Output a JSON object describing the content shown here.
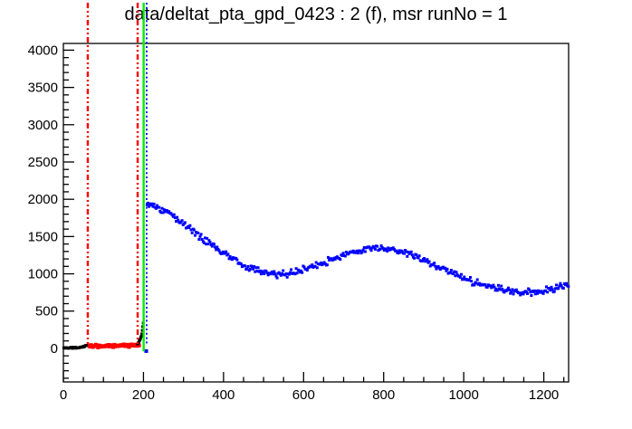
{
  "window": {
    "background": "#ffffff"
  },
  "chart_data": {
    "type": "scatter",
    "title": "data/deltat_pta_gpd_0423 : 2 (f), msr runNo = 1",
    "xlabel": "",
    "ylabel": "",
    "xlim": [
      0,
      1262
    ],
    "ylim": [
      -450,
      4090
    ],
    "grid": false,
    "legend": false,
    "axis_color": "#000000",
    "x_axis": {
      "major_step": 200,
      "minor_step": 50,
      "tick_labels": [
        "0",
        "200",
        "400",
        "600",
        "800",
        "1000",
        "1200"
      ]
    },
    "y_axis": {
      "major_step": 500,
      "minor_step": 100,
      "tick_labels": [
        "0",
        "500",
        "1000",
        "1500",
        "2000",
        "2500",
        "3000",
        "3500",
        "4000"
      ]
    },
    "marker_lines": [
      {
        "name": "background-range-start-line",
        "x": 61,
        "color": "#ff0000",
        "style": "dashdot",
        "width": 2.4,
        "end_value": 30
      },
      {
        "name": "background-range-end-line",
        "x": 185.5,
        "color": "#ff0000",
        "style": "dashdot",
        "width": 2.4,
        "end_value": 30
      },
      {
        "name": "t0-line",
        "x": 200.5,
        "color": "#00ee00",
        "style": "solid",
        "width": 2.4,
        "end_value": -40
      },
      {
        "name": "first-good-bin-line",
        "x": 208,
        "color": "#0000ff",
        "style": "dotted",
        "width": 1.8,
        "end_value": 55
      }
    ],
    "series": [
      {
        "name": "pre-background-data",
        "color": "#000000",
        "marker": 3,
        "step": 1.4,
        "noise": 12,
        "seed": 11,
        "range": [
          1,
          63
        ],
        "anchors": [
          [
            1,
            6
          ],
          [
            40,
            10
          ],
          [
            50,
            25
          ],
          [
            63,
            45
          ]
        ]
      },
      {
        "name": "background-window-data",
        "color": "#ff0000",
        "marker": 4,
        "step": 1.8,
        "noise": 27,
        "seed": 22,
        "range": [
          65,
          191
        ],
        "anchors": [
          [
            65,
            38
          ],
          [
            191,
            40
          ]
        ]
      },
      {
        "name": "prompt-peak-rise-data",
        "color": "#000000",
        "marker": 3,
        "step": 1.2,
        "noise": 14,
        "seed": 33,
        "range": [
          185,
          200
        ],
        "anchors": [
          [
            185,
            55
          ],
          [
            190,
            95
          ],
          [
            194,
            150
          ],
          [
            197,
            240
          ],
          [
            200,
            360
          ]
        ]
      },
      {
        "name": "t0-undershoot-point",
        "color": "#0000ff",
        "marker": 4,
        "step": 2,
        "noise": 0,
        "seed": 44,
        "range": [
          207,
          208
        ],
        "anchors": [
          [
            207,
            -36
          ]
        ]
      },
      {
        "name": "muon-decay-histogram-data",
        "color": "#0000ff",
        "marker": 3,
        "step": 2.5,
        "noise": 55,
        "seed": 55,
        "range": [
          209,
          1262
        ],
        "anchors": [
          [
            209,
            1905
          ],
          [
            215,
            1950
          ],
          [
            228,
            1930
          ],
          [
            245,
            1862
          ],
          [
            270,
            1800
          ],
          [
            300,
            1672
          ],
          [
            330,
            1548
          ],
          [
            360,
            1430
          ],
          [
            390,
            1312
          ],
          [
            420,
            1212
          ],
          [
            450,
            1118
          ],
          [
            480,
            1058
          ],
          [
            505,
            1012
          ],
          [
            530,
            992
          ],
          [
            560,
            1000
          ],
          [
            600,
            1058
          ],
          [
            640,
            1130
          ],
          [
            680,
            1212
          ],
          [
            720,
            1283
          ],
          [
            755,
            1330
          ],
          [
            790,
            1352
          ],
          [
            825,
            1328
          ],
          [
            860,
            1267
          ],
          [
            900,
            1185
          ],
          [
            940,
            1090
          ],
          [
            980,
            990
          ],
          [
            1020,
            900
          ],
          [
            1060,
            833
          ],
          [
            1100,
            783
          ],
          [
            1140,
            756
          ],
          [
            1180,
            757
          ],
          [
            1215,
            785
          ],
          [
            1245,
            828
          ],
          [
            1262,
            856
          ]
        ]
      }
    ]
  }
}
